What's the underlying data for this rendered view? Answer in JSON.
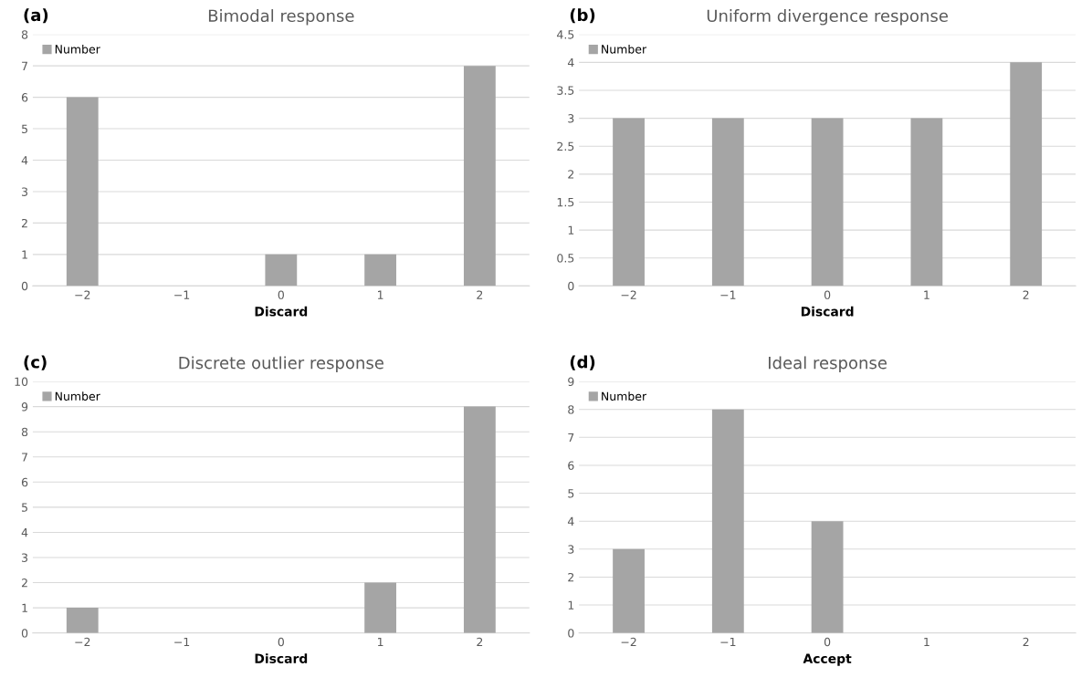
{
  "chart_data": [
    {
      "type": "bar",
      "title": "Bimodal response",
      "annotations": [
        "(a)"
      ],
      "xlabel": "Discard",
      "categories": [
        "−2",
        "−1",
        "0",
        "1",
        "2"
      ],
      "series": [
        {
          "name": "Number",
          "color": "#a5a5a5",
          "values": [
            6,
            0,
            1,
            1,
            7
          ]
        }
      ],
      "ylim": [
        0,
        8
      ],
      "yticks": [
        0,
        1,
        2,
        3,
        4,
        5,
        6,
        7,
        8
      ],
      "grid": "y",
      "legend": "top left"
    },
    {
      "type": "bar",
      "title": "Uniform divergence response",
      "annotations": [
        "(b)"
      ],
      "xlabel": "Discard",
      "categories": [
        "−2",
        "−1",
        "0",
        "1",
        "2"
      ],
      "series": [
        {
          "name": "Number",
          "color": "#a5a5a5",
          "values": [
            3,
            3,
            3,
            3,
            4
          ]
        }
      ],
      "ylim": [
        0,
        4.5
      ],
      "yticks": [
        0,
        0.5,
        1,
        1.5,
        2,
        2.5,
        3,
        3.5,
        4,
        4.5
      ],
      "grid": "y",
      "legend": "top left"
    },
    {
      "type": "bar",
      "title": "Discrete outlier response",
      "annotations": [
        "(c)"
      ],
      "xlabel": "Discard",
      "categories": [
        "−2",
        "−1",
        "0",
        "1",
        "2"
      ],
      "series": [
        {
          "name": "Number",
          "color": "#a5a5a5",
          "values": [
            1,
            0,
            0,
            2,
            9
          ]
        }
      ],
      "ylim": [
        0,
        10
      ],
      "yticks": [
        0,
        1,
        2,
        3,
        4,
        5,
        6,
        7,
        8,
        9,
        10
      ],
      "grid": "y",
      "legend": "top left"
    },
    {
      "type": "bar",
      "title": "Ideal response",
      "annotations": [
        "(d)"
      ],
      "xlabel": "Accept",
      "categories": [
        "−2",
        "−1",
        "0",
        "1",
        "2"
      ],
      "series": [
        {
          "name": "Number",
          "color": "#a5a5a5",
          "values": [
            3,
            8,
            4,
            0,
            0
          ]
        }
      ],
      "ylim": [
        0,
        9
      ],
      "yticks": [
        0,
        1,
        2,
        3,
        4,
        5,
        6,
        7,
        8,
        9
      ],
      "grid": "y",
      "legend": "top left"
    }
  ]
}
